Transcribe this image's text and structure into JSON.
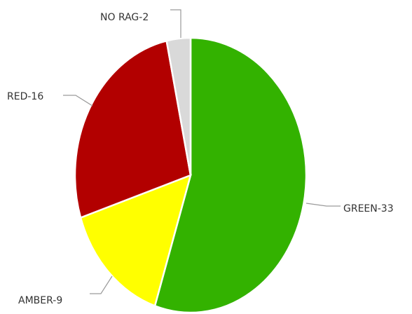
{
  "chart_data": {
    "type": "pie",
    "title": "",
    "slices": [
      {
        "label": "GREEN-33",
        "value": 33,
        "color": "#33b200"
      },
      {
        "label": "AMBER-9",
        "value": 9,
        "color": "#ffff00"
      },
      {
        "label": "RED-16",
        "value": 16,
        "color": "#b20000"
      },
      {
        "label": "NO RAG-2",
        "value": 2,
        "color": "#d9d9d9"
      }
    ],
    "legend": "none"
  }
}
